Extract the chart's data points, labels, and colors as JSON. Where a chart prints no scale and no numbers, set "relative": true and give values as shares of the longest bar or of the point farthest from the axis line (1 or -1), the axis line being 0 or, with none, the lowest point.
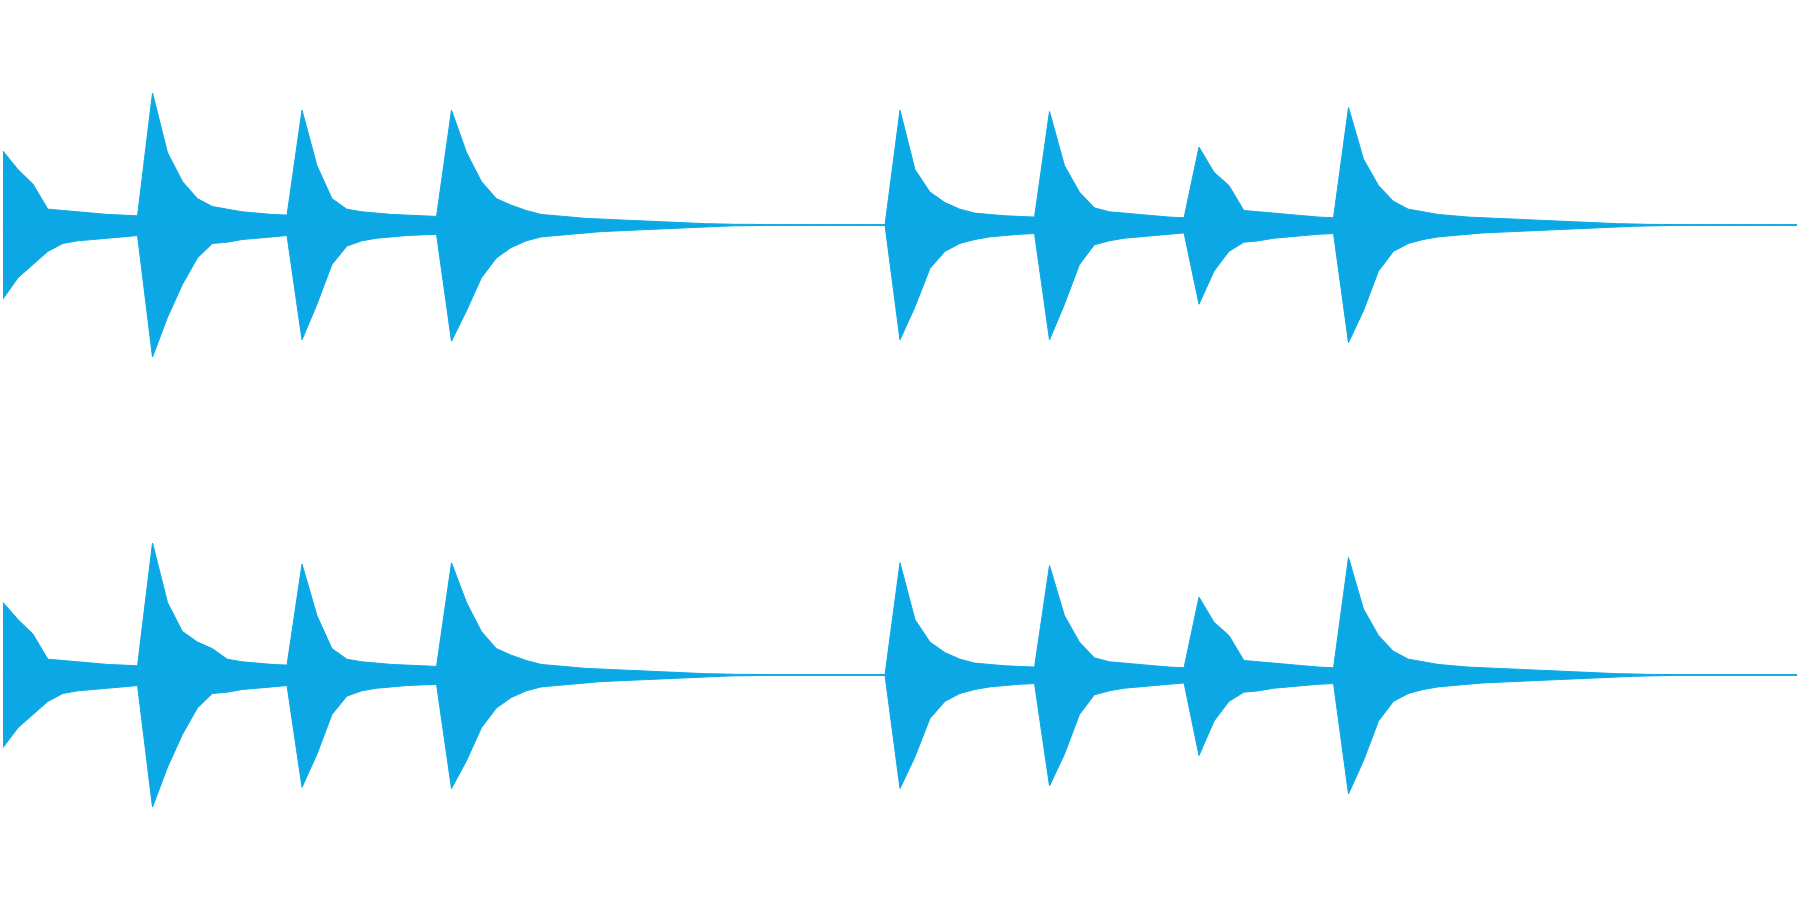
{
  "chart_data": [
    {
      "type": "area",
      "relative": true,
      "categories": [
        null,
        null,
        null,
        null,
        null,
        null,
        null,
        null,
        null,
        null,
        null,
        null,
        null,
        null,
        null,
        null,
        null,
        null,
        null,
        null,
        null,
        null,
        null,
        null,
        null,
        null,
        null,
        null,
        null,
        null,
        null,
        null,
        null,
        null,
        null,
        null,
        null,
        null,
        null,
        null,
        null,
        null,
        null,
        null,
        null,
        null,
        null,
        null,
        null,
        null,
        null,
        null,
        null,
        null,
        null,
        null,
        null,
        null,
        null,
        null,
        null,
        null,
        null,
        null,
        null,
        null,
        null,
        null,
        null,
        null,
        null,
        null,
        null,
        null,
        null,
        null,
        null,
        null,
        null,
        null,
        null,
        null,
        null,
        null,
        null,
        null,
        null,
        null,
        null,
        null,
        null,
        null,
        null,
        null,
        null,
        null,
        null,
        null,
        null,
        null,
        null,
        null,
        null,
        null,
        null,
        null,
        null,
        null,
        null,
        null,
        null,
        null,
        null,
        null,
        null,
        null,
        null,
        null,
        null,
        null,
        null
      ],
      "series": [
        {
          "color": "#0aa9e6",
          "values": [
            0.56,
            0.42,
            0.31,
            0.12,
            0.11,
            0.1,
            0.09,
            0.08,
            0.075,
            0.07,
            1,
            0.55,
            0.33,
            0.2,
            0.14,
            0.12,
            0.1,
            0.09,
            0.08,
            0.075,
            0.87,
            0.45,
            0.2,
            0.12,
            0.1,
            0.09,
            0.08,
            0.075,
            0.07,
            0.065,
            0.87,
            0.55,
            0.33,
            0.2,
            0.15,
            0.11,
            0.08,
            0.07,
            0.06,
            0.05,
            0.045,
            0.04,
            0.035,
            0.03,
            0.025,
            0.02,
            0.015,
            0.01,
            0.008,
            0.005,
            0.005,
            0.003,
            0.003,
            0.003,
            0.003,
            0.003,
            0.003,
            0.003,
            0.003,
            0.003,
            0.87,
            0.42,
            0.25,
            0.17,
            0.12,
            0.09,
            0.08,
            0.07,
            0.065,
            0.06,
            0.86,
            0.45,
            0.25,
            0.13,
            0.1,
            0.09,
            0.08,
            0.07,
            0.06,
            0.055,
            0.59,
            0.4,
            0.3,
            0.11,
            0.1,
            0.09,
            0.08,
            0.07,
            0.06,
            0.055,
            0.89,
            0.5,
            0.3,
            0.18,
            0.12,
            0.1,
            0.08,
            0.07,
            0.06,
            0.055,
            0.05,
            0.045,
            0.04,
            0.035,
            0.03,
            0.025,
            0.02,
            0.015,
            0.01,
            0.008,
            0.005,
            0.004,
            0.003,
            0.003,
            0.003,
            0.003,
            0.003,
            0.003,
            0.003,
            0.003,
            0.003
          ]
        },
        {
          "color": "#0ba8e5",
          "values": [
            -0.56,
            -0.4,
            -0.3,
            -0.2,
            -0.14,
            -0.12,
            -0.11,
            -0.1,
            -0.09,
            -0.08,
            -1,
            -0.7,
            -0.45,
            -0.25,
            -0.14,
            -0.13,
            -0.11,
            -0.1,
            -0.09,
            -0.08,
            -0.87,
            -0.6,
            -0.3,
            -0.16,
            -0.12,
            -0.1,
            -0.09,
            -0.08,
            -0.075,
            -0.07,
            -0.88,
            -0.65,
            -0.4,
            -0.25,
            -0.17,
            -0.12,
            -0.09,
            -0.08,
            -0.07,
            -0.06,
            -0.05,
            -0.045,
            -0.04,
            -0.035,
            -0.03,
            -0.025,
            -0.02,
            -0.015,
            -0.01,
            -0.006,
            -0.005,
            -0.003,
            -0.003,
            -0.003,
            -0.003,
            -0.003,
            -0.003,
            -0.003,
            -0.003,
            -0.003,
            -0.87,
            -0.62,
            -0.33,
            -0.2,
            -0.14,
            -0.11,
            -0.09,
            -0.08,
            -0.07,
            -0.065,
            -0.87,
            -0.6,
            -0.3,
            -0.15,
            -0.12,
            -0.1,
            -0.09,
            -0.08,
            -0.07,
            -0.06,
            -0.6,
            -0.35,
            -0.2,
            -0.13,
            -0.12,
            -0.1,
            -0.09,
            -0.08,
            -0.07,
            -0.065,
            -0.89,
            -0.65,
            -0.35,
            -0.2,
            -0.14,
            -0.11,
            -0.09,
            -0.08,
            -0.07,
            -0.06,
            -0.055,
            -0.05,
            -0.045,
            -0.04,
            -0.035,
            -0.03,
            -0.025,
            -0.02,
            -0.015,
            -0.01,
            -0.007,
            -0.005,
            -0.003,
            -0.003,
            -0.003,
            -0.003,
            -0.003,
            -0.003,
            -0.003,
            -0.003,
            -0.003
          ]
        }
      ]
    },
    {
      "type": "area",
      "relative": true,
      "categories": [
        null,
        null,
        null,
        null,
        null,
        null,
        null,
        null,
        null,
        null,
        null,
        null,
        null,
        null,
        null,
        null,
        null,
        null,
        null,
        null,
        null,
        null,
        null,
        null,
        null,
        null,
        null,
        null,
        null,
        null,
        null,
        null,
        null,
        null,
        null,
        null,
        null,
        null,
        null,
        null,
        null,
        null,
        null,
        null,
        null,
        null,
        null,
        null,
        null,
        null,
        null,
        null,
        null,
        null,
        null,
        null,
        null,
        null,
        null,
        null,
        null,
        null,
        null,
        null,
        null,
        null,
        null,
        null,
        null,
        null,
        null,
        null,
        null,
        null,
        null,
        null,
        null,
        null,
        null,
        null,
        null,
        null,
        null,
        null,
        null,
        null,
        null,
        null,
        null,
        null,
        null,
        null,
        null,
        null,
        null,
        null,
        null,
        null,
        null,
        null,
        null,
        null,
        null,
        null,
        null,
        null,
        null,
        null,
        null,
        null,
        null,
        null,
        null,
        null,
        null,
        null,
        null,
        null,
        null,
        null,
        null
      ],
      "series": [
        {
          "color": "#0aa9e6",
          "values": [
            0.55,
            0.42,
            0.31,
            0.12,
            0.11,
            0.1,
            0.09,
            0.08,
            0.075,
            0.07,
            1,
            0.55,
            0.33,
            0.25,
            0.2,
            0.12,
            0.1,
            0.09,
            0.08,
            0.075,
            0.84,
            0.45,
            0.2,
            0.12,
            0.1,
            0.09,
            0.08,
            0.075,
            0.07,
            0.065,
            0.85,
            0.55,
            0.33,
            0.2,
            0.15,
            0.11,
            0.08,
            0.07,
            0.06,
            0.05,
            0.045,
            0.04,
            0.035,
            0.03,
            0.025,
            0.02,
            0.015,
            0.01,
            0.008,
            0.005,
            0.005,
            0.003,
            0.003,
            0.003,
            0.003,
            0.003,
            0.003,
            0.003,
            0.003,
            0.003,
            0.85,
            0.42,
            0.25,
            0.17,
            0.12,
            0.09,
            0.08,
            0.07,
            0.065,
            0.06,
            0.83,
            0.45,
            0.25,
            0.13,
            0.1,
            0.09,
            0.08,
            0.07,
            0.06,
            0.055,
            0.59,
            0.4,
            0.3,
            0.11,
            0.1,
            0.09,
            0.08,
            0.07,
            0.06,
            0.055,
            0.89,
            0.5,
            0.3,
            0.18,
            0.12,
            0.1,
            0.08,
            0.07,
            0.06,
            0.055,
            0.05,
            0.045,
            0.04,
            0.035,
            0.03,
            0.025,
            0.02,
            0.015,
            0.01,
            0.008,
            0.005,
            0.004,
            0.003,
            0.003,
            0.003,
            0.003,
            0.003,
            0.003,
            0.003,
            0.003,
            0.003
          ]
        },
        {
          "color": "#0ba8e5",
          "values": [
            -0.55,
            -0.4,
            -0.3,
            -0.2,
            -0.14,
            -0.12,
            -0.11,
            -0.1,
            -0.09,
            -0.08,
            -1,
            -0.7,
            -0.45,
            -0.25,
            -0.14,
            -0.13,
            -0.11,
            -0.1,
            -0.09,
            -0.08,
            -0.85,
            -0.6,
            -0.3,
            -0.16,
            -0.12,
            -0.1,
            -0.09,
            -0.08,
            -0.075,
            -0.07,
            -0.86,
            -0.65,
            -0.4,
            -0.25,
            -0.17,
            -0.12,
            -0.09,
            -0.08,
            -0.07,
            -0.06,
            -0.05,
            -0.045,
            -0.04,
            -0.035,
            -0.03,
            -0.025,
            -0.02,
            -0.015,
            -0.01,
            -0.006,
            -0.005,
            -0.003,
            -0.003,
            -0.003,
            -0.003,
            -0.003,
            -0.003,
            -0.003,
            -0.003,
            -0.003,
            -0.86,
            -0.62,
            -0.33,
            -0.2,
            -0.14,
            -0.11,
            -0.09,
            -0.08,
            -0.07,
            -0.065,
            -0.84,
            -0.6,
            -0.3,
            -0.15,
            -0.12,
            -0.1,
            -0.09,
            -0.08,
            -0.07,
            -0.06,
            -0.61,
            -0.35,
            -0.2,
            -0.13,
            -0.12,
            -0.1,
            -0.09,
            -0.08,
            -0.07,
            -0.065,
            -0.9,
            -0.65,
            -0.35,
            -0.2,
            -0.14,
            -0.11,
            -0.09,
            -0.08,
            -0.07,
            -0.06,
            -0.055,
            -0.05,
            -0.045,
            -0.04,
            -0.035,
            -0.03,
            -0.025,
            -0.02,
            -0.015,
            -0.01,
            -0.007,
            -0.005,
            -0.003,
            -0.003,
            -0.003,
            -0.003,
            -0.003,
            -0.003,
            -0.003,
            -0.003,
            -0.003
          ]
        }
      ]
    }
  ]
}
